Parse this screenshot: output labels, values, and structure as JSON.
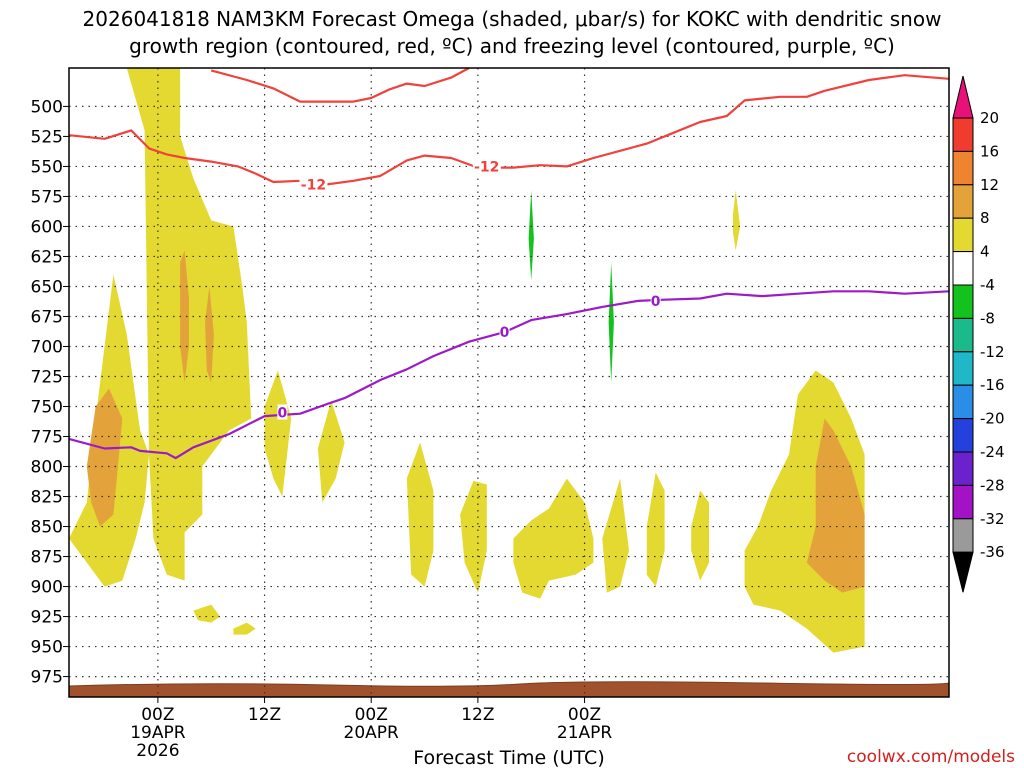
{
  "chart_data": {
    "type": "time-height-cross-section",
    "title_line1": "2026041818 NAM3KM Forecast Omega (shaded, μbar/s) for KOKC with dendritic snow",
    "title_line2": "growth region (contoured, red, ºC) and freezing level (contoured, purple, ºC)",
    "xlabel": "Forecast Time (UTC)",
    "credit": "coolwx.com/models",
    "x_range_hours": [
      -10,
      89
    ],
    "y_range_hPa": [
      468,
      992
    ],
    "pressure_ticks": [
      "500",
      "525",
      "550",
      "575",
      "600",
      "625",
      "650",
      "675",
      "700",
      "725",
      "750",
      "775",
      "800",
      "825",
      "850",
      "875",
      "900",
      "925",
      "950",
      "975"
    ],
    "time_ticks": [
      {
        "hour": 0,
        "line1": "00Z",
        "line2": "19APR",
        "line3": "2026"
      },
      {
        "hour": 12,
        "line1": "12Z",
        "line2": "",
        "line3": ""
      },
      {
        "hour": 24,
        "line1": "00Z",
        "line2": "20APR",
        "line3": ""
      },
      {
        "hour": 36,
        "line1": "12Z",
        "line2": "",
        "line3": ""
      },
      {
        "hour": 48,
        "line1": "00Z",
        "line2": "21APR",
        "line3": ""
      }
    ],
    "colorbar": {
      "labels": [
        "20",
        "16",
        "12",
        "8",
        "4",
        "-4",
        "-8",
        "-12",
        "-16",
        "-20",
        "-24",
        "-28",
        "-32",
        "-36"
      ],
      "colors": [
        "#e8117a",
        "#f03c2f",
        "#ef8430",
        "#e3a33a",
        "#e4d930",
        "#ffffff",
        "#14c21e",
        "#1bba8b",
        "#20b8c8",
        "#2a8de6",
        "#2440dd",
        "#6b22cc",
        "#a312c4",
        "#9a9a9a",
        "#000000"
      ]
    },
    "contours": {
      "minus12": {
        "color": "#f0423c",
        "label": "-12",
        "upper": [
          [
            -10,
            524
          ],
          [
            -6,
            527
          ],
          [
            -3,
            520
          ],
          [
            -1,
            535
          ],
          [
            1,
            540
          ],
          [
            3,
            543
          ],
          [
            6,
            546
          ],
          [
            9,
            550
          ],
          [
            11,
            556
          ],
          [
            13,
            563
          ],
          [
            16,
            562
          ],
          [
            18,
            566
          ],
          [
            22,
            562
          ],
          [
            25,
            558
          ],
          [
            28,
            545
          ],
          [
            30,
            541
          ],
          [
            33,
            543
          ],
          [
            36,
            551
          ],
          [
            40,
            551
          ],
          [
            43,
            549
          ],
          [
            46,
            550
          ],
          [
            49,
            543
          ],
          [
            52,
            537
          ],
          [
            55,
            531
          ],
          [
            58,
            522
          ],
          [
            61,
            513
          ],
          [
            64,
            508
          ],
          [
            66,
            495
          ],
          [
            70,
            492
          ],
          [
            73,
            492
          ],
          [
            75,
            487
          ],
          [
            80,
            478
          ],
          [
            84,
            474
          ],
          [
            89,
            477
          ]
        ],
        "lower": [
          [
            6,
            470
          ],
          [
            10,
            478
          ],
          [
            13,
            485
          ],
          [
            16,
            496
          ],
          [
            19,
            496
          ],
          [
            22,
            496
          ],
          [
            24,
            493
          ],
          [
            26,
            486
          ],
          [
            28,
            481
          ],
          [
            30,
            483
          ],
          [
            33,
            476
          ],
          [
            35,
            468
          ]
        ]
      },
      "zero": {
        "color": "#9c1bc7",
        "label": "0",
        "points": [
          [
            -10,
            777
          ],
          [
            -6,
            785
          ],
          [
            -3,
            784
          ],
          [
            -2,
            787
          ],
          [
            1,
            789
          ],
          [
            2,
            793
          ],
          [
            4,
            784
          ],
          [
            8,
            773
          ],
          [
            12,
            758
          ],
          [
            16,
            756
          ],
          [
            19,
            748
          ],
          [
            21,
            743
          ],
          [
            25,
            728
          ],
          [
            28,
            719
          ],
          [
            31,
            708
          ],
          [
            35,
            696
          ],
          [
            39,
            688
          ],
          [
            42,
            678
          ],
          [
            46,
            673
          ],
          [
            50,
            667
          ],
          [
            54,
            662
          ],
          [
            57,
            661
          ],
          [
            61,
            660
          ],
          [
            64,
            656
          ],
          [
            68,
            658
          ],
          [
            72,
            656
          ],
          [
            76,
            654
          ],
          [
            80,
            654
          ],
          [
            84,
            656
          ],
          [
            89,
            654
          ]
        ]
      }
    },
    "omega_regions": [
      {
        "level": "4-8",
        "color": "#e4d930",
        "points": [
          [
            -10,
            860
          ],
          [
            -8,
            830
          ],
          [
            -7,
            760
          ],
          [
            -5,
            640
          ],
          [
            -3.5,
            690
          ],
          [
            -2,
            770
          ],
          [
            -1,
            790
          ],
          [
            -1.5,
            830
          ],
          [
            -2.5,
            860
          ],
          [
            -4,
            895
          ],
          [
            -6,
            900
          ],
          [
            -8,
            880
          ]
        ]
      },
      {
        "level": "4-8",
        "color": "#e4d930",
        "points": [
          [
            -3.5,
            468
          ],
          [
            -2.5,
            465
          ],
          [
            2.5,
            465
          ],
          [
            2.5,
            525
          ],
          [
            4,
            560
          ],
          [
            6,
            595
          ],
          [
            8.5,
            600
          ],
          [
            9.5,
            650
          ],
          [
            10,
            680
          ],
          [
            10.5,
            760
          ],
          [
            8,
            770
          ],
          [
            5,
            800
          ],
          [
            5,
            840
          ],
          [
            3,
            855
          ],
          [
            3,
            895
          ],
          [
            1,
            890
          ],
          [
            -0.5,
            860
          ],
          [
            -1,
            790
          ],
          [
            -1.5,
            520
          ]
        ]
      },
      {
        "level": "4-8",
        "color": "#e4d930",
        "points": [
          [
            12,
            750
          ],
          [
            13.5,
            720
          ],
          [
            15,
            760
          ],
          [
            14,
            825
          ],
          [
            13,
            810
          ],
          [
            12,
            785
          ]
        ]
      },
      {
        "level": "4-8",
        "color": "#e4d930",
        "points": [
          [
            18,
            785
          ],
          [
            19.5,
            745
          ],
          [
            21,
            780
          ],
          [
            20,
            810
          ],
          [
            18.5,
            830
          ]
        ]
      },
      {
        "level": "4-8",
        "color": "#e4d930",
        "points": [
          [
            28,
            810
          ],
          [
            29.5,
            780
          ],
          [
            31,
            820
          ],
          [
            31,
            870
          ],
          [
            30,
            900
          ],
          [
            28.5,
            890
          ]
        ]
      },
      {
        "level": "4-8",
        "color": "#e4d930",
        "points": [
          [
            34,
            840
          ],
          [
            35.5,
            812
          ],
          [
            37,
            815
          ],
          [
            37,
            870
          ],
          [
            36,
            905
          ],
          [
            34.5,
            880
          ]
        ]
      },
      {
        "level": "4-8",
        "color": "#e4d930",
        "points": [
          [
            40,
            860
          ],
          [
            42,
            845
          ],
          [
            44,
            835
          ],
          [
            46,
            810
          ],
          [
            48,
            830
          ],
          [
            49,
            860
          ],
          [
            49,
            880
          ],
          [
            47,
            890
          ],
          [
            44,
            895
          ],
          [
            43,
            910
          ],
          [
            41,
            905
          ],
          [
            40,
            880
          ]
        ]
      },
      {
        "level": "4-8",
        "color": "#e4d930",
        "points": [
          [
            50,
            860
          ],
          [
            51,
            835
          ],
          [
            52,
            810
          ],
          [
            53,
            870
          ],
          [
            52,
            900
          ],
          [
            50.5,
            905
          ]
        ]
      },
      {
        "level": "4-8",
        "color": "#e4d930",
        "points": [
          [
            55,
            850
          ],
          [
            56,
            805
          ],
          [
            57,
            820
          ],
          [
            57,
            870
          ],
          [
            56,
            900
          ],
          [
            55,
            890
          ]
        ]
      },
      {
        "level": "4-8",
        "color": "#e4d930",
        "points": [
          [
            60,
            850
          ],
          [
            61,
            820
          ],
          [
            62,
            830
          ],
          [
            62,
            880
          ],
          [
            61,
            895
          ],
          [
            60,
            870
          ]
        ]
      },
      {
        "level": "4-8",
        "color": "#e4d930",
        "points": [
          [
            66,
            870
          ],
          [
            67.5,
            850
          ],
          [
            69,
            820
          ],
          [
            71,
            790
          ],
          [
            72,
            740
          ],
          [
            74,
            720
          ],
          [
            76,
            730
          ],
          [
            78,
            760
          ],
          [
            79.5,
            790
          ],
          [
            79.5,
            950
          ],
          [
            76,
            955
          ],
          [
            73,
            935
          ],
          [
            70,
            920
          ],
          [
            67,
            915
          ],
          [
            66,
            900
          ]
        ]
      },
      {
        "level": "4-8",
        "color": "#e4d930",
        "points": [
          [
            64.7,
            590
          ],
          [
            65,
            570
          ],
          [
            65.5,
            600
          ],
          [
            65,
            620
          ],
          [
            64.7,
            605
          ]
        ]
      },
      {
        "level": "4-8",
        "color": "#e4d930",
        "points": [
          [
            4,
            920
          ],
          [
            6,
            915
          ],
          [
            7,
            925
          ],
          [
            6,
            930
          ],
          [
            4.5,
            928
          ]
        ]
      },
      {
        "level": "4-8",
        "color": "#e4d930",
        "points": [
          [
            8.5,
            935
          ],
          [
            10,
            930
          ],
          [
            11,
            935
          ],
          [
            10,
            940
          ],
          [
            8.5,
            940
          ]
        ]
      },
      {
        "level": "8-12",
        "color": "#e3a33a",
        "points": [
          [
            -8,
            800
          ],
          [
            -7,
            750
          ],
          [
            -5.5,
            735
          ],
          [
            -4,
            760
          ],
          [
            -4.5,
            800
          ],
          [
            -5,
            840
          ],
          [
            -6.5,
            850
          ],
          [
            -7.5,
            830
          ]
        ]
      },
      {
        "level": "8-12",
        "color": "#e3a33a",
        "points": [
          [
            2.5,
            630
          ],
          [
            3,
            620
          ],
          [
            3.5,
            660
          ],
          [
            3.5,
            700
          ],
          [
            3,
            730
          ],
          [
            2.5,
            700
          ]
        ]
      },
      {
        "level": "8-12",
        "color": "#e3a33a",
        "points": [
          [
            5.3,
            680
          ],
          [
            5.8,
            650
          ],
          [
            6.3,
            690
          ],
          [
            6,
            730
          ],
          [
            5.5,
            720
          ]
        ]
      },
      {
        "level": "8-12",
        "color": "#e3a33a",
        "points": [
          [
            74,
            800
          ],
          [
            75,
            760
          ],
          [
            76,
            770
          ],
          [
            78,
            800
          ],
          [
            79.5,
            840
          ],
          [
            79.5,
            900
          ],
          [
            77,
            905
          ],
          [
            75,
            895
          ],
          [
            73,
            880
          ],
          [
            74,
            850
          ]
        ]
      },
      {
        "level": "neg4-8",
        "color": "#14c21e",
        "points": [
          [
            41.7,
            610
          ],
          [
            42,
            570
          ],
          [
            42.3,
            610
          ],
          [
            42,
            645
          ]
        ]
      },
      {
        "level": "neg4-8",
        "color": "#14c21e",
        "points": [
          [
            50.7,
            680
          ],
          [
            51,
            630
          ],
          [
            51.3,
            680
          ],
          [
            51,
            730
          ]
        ]
      }
    ]
  }
}
